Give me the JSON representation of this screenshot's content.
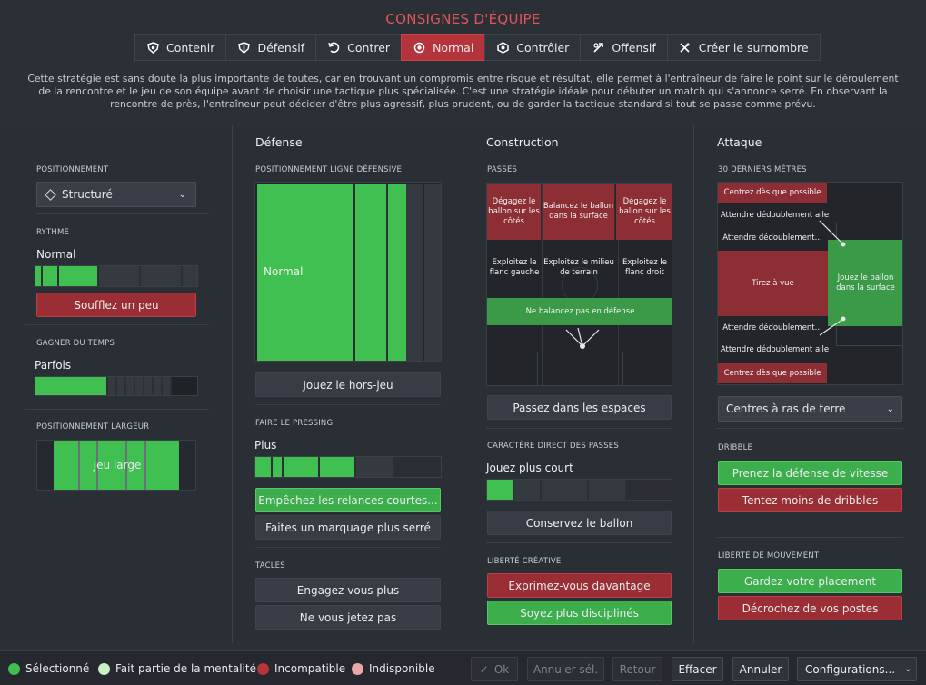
{
  "title": "CONSIGNES D'ÉQUIPE",
  "tabs": [
    {
      "label": "Contenir",
      "icon": "shield-down-icon"
    },
    {
      "label": "Défensif",
      "icon": "shield-icon"
    },
    {
      "label": "Contrer",
      "icon": "counter-icon"
    },
    {
      "label": "Normal",
      "icon": "target-icon"
    },
    {
      "label": "Contrôler",
      "icon": "control-icon"
    },
    {
      "label": "Offensif",
      "icon": "attack-icon"
    },
    {
      "label": "Créer le surnombre",
      "icon": "overload-icon"
    }
  ],
  "active_tab": "Normal",
  "description": "Cette stratégie est sans doute la plus importante de toutes, car en trouvant un compromis entre risque et résultat, elle permet à l'entraîneur de faire le point sur le déroulement de la rencontre et le jeu de son équipe avant de choisir une tactique plus spécialisée. C'est une stratégie idéale pour débuter un match qui s'annonce serré. En observant la rencontre de près, l'entraîneur peut décider d'être plus agressif, plus prudent, ou de garder la tactique standard si tout se passe comme prévu.",
  "left": {
    "positioning_title": "POSITIONNEMENT",
    "positioning_value": "Structuré",
    "tempo_title": "RYTHME",
    "tempo_value": "Normal",
    "tempo_button": "Soufflez un peu",
    "time_title": "GAGNER DU TEMPS",
    "time_value": "Parfois",
    "width_title": "POSITIONNEMENT LARGEUR",
    "width_value": "Jeu large"
  },
  "defense": {
    "header": "Défense",
    "line_title": "POSITIONNEMENT LIGNE DÉFENSIVE",
    "line_value": "Normal",
    "offside_button": "Jouez le hors-jeu",
    "press_title": "FAIRE LE PRESSING",
    "press_value": "Plus",
    "press_btn1": "Empêchez les relances courtes...",
    "press_btn2": "Faites un marquage plus serré",
    "tackle_title": "TACLES",
    "tackle_btn1": "Engagez-vous plus",
    "tackle_btn2": "Ne vous jetez pas"
  },
  "build": {
    "header": "Construction",
    "passes_title": "PASSES",
    "cells": [
      "Dégagez le ballon sur les côtés",
      "Balancez le ballon dans la surface",
      "Dégagez le ballon sur les côtés",
      "Exploitez le flanc gauche",
      "Exploitez le milieu de terrain",
      "Exploitez le flanc droit"
    ],
    "defense_cell": "Ne balancez pas en défense",
    "space_button": "Passez dans les espaces",
    "directness_title": "CARACTÈRE DIRECT DES PASSES",
    "directness_value": "Jouez plus court",
    "keep_button": "Conservez le ballon",
    "creative_title": "LIBERTÉ CRÉATIVE",
    "creative_btn1": "Exprimez-vous davantage",
    "creative_btn2": "Soyez plus disciplinés"
  },
  "attack": {
    "header": "Attaque",
    "final_title": "30 DERNIERS MÈTRES",
    "cells": [
      "Centrez dès que possible",
      "Attendre dédoublement aile",
      "Attendre dédoublement...",
      "Tirez à vue",
      "Jouez le ballon dans la surface",
      "Attendre dédoublement...",
      "Attendre dédoublement aile",
      "Centrez dès que possible"
    ],
    "cross_select": "Centres à ras de terre",
    "dribble_title": "DRIBBLE",
    "dribble_btn1": "Prenez la défense de vitesse",
    "dribble_btn2": "Tentez moins de dribbles",
    "movement_title": "LIBERTÉ DE MOUVEMENT",
    "movement_btn1": "Gardez votre placement",
    "movement_btn2": "Décrochez de vos postes"
  },
  "legend": [
    {
      "label": "Sélectionné",
      "color": "#3fbf4f"
    },
    {
      "label": "Fait partie de la mentalité",
      "color": "#c8f0c0"
    },
    {
      "label": "Incompatible",
      "color": "#b8343b"
    },
    {
      "label": "Indisponible",
      "color": "#e8a8a8"
    }
  ],
  "footer": {
    "ok": "Ok",
    "cancel_sel": "Annuler sél.",
    "back": "Retour",
    "clear": "Effacer",
    "cancel": "Annuler",
    "configs": "Configurations..."
  },
  "colors": {
    "accent": "#e2545a",
    "selected": "#3fbf4f",
    "incompatible": "#9b2e34"
  }
}
